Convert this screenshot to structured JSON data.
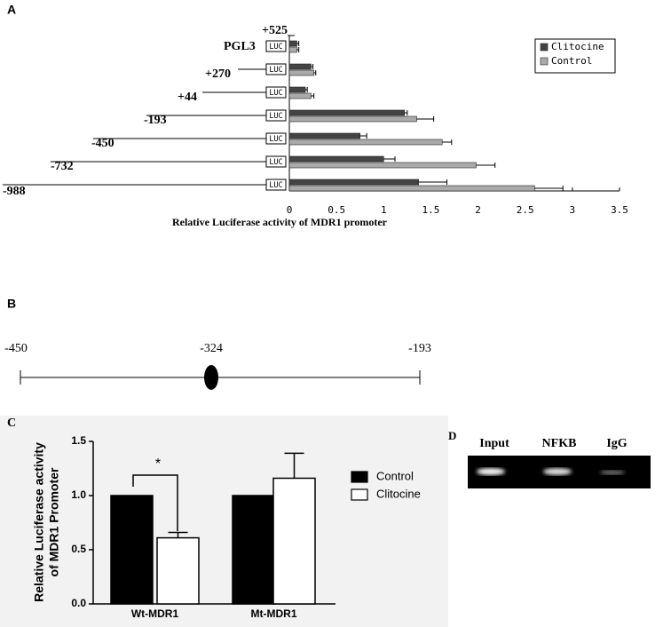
{
  "panel_labels": [
    "A",
    "B",
    "C",
    "D"
  ],
  "chart_data": [
    {
      "type": "hbar",
      "x_label": "Relative Luciferase  activity of MDR1 promoter",
      "end_label": "+525",
      "box_label": "LUC",
      "categories": [
        "PGL3",
        "+270",
        "+44",
        "-193",
        "-450",
        "-732",
        "-988"
      ],
      "series": [
        {
          "name": "Clitocine",
          "color": "#444444",
          "values": [
            0.08,
            0.23,
            0.17,
            1.22,
            0.75,
            1.0,
            1.37
          ],
          "errors": [
            0.02,
            0.02,
            0.02,
            0.03,
            0.07,
            0.12,
            0.3
          ]
        },
        {
          "name": "Control",
          "color": "#aaaaaa",
          "values": [
            0.08,
            0.26,
            0.23,
            1.35,
            1.62,
            1.98,
            2.6
          ],
          "errors": [
            0.02,
            0.02,
            0.03,
            0.18,
            0.1,
            0.2,
            0.3
          ]
        }
      ],
      "xlim": [
        0,
        3.5
      ],
      "xticks": [
        0,
        0.5,
        1,
        1.5,
        2,
        2.5,
        3,
        3.5
      ],
      "legend": "upper right"
    },
    {
      "type": "bar",
      "y_label": [
        "Relative Luciferase activity",
        "of MDR1 Promoter"
      ],
      "categories": [
        "Wt-MDR1",
        "Mt-MDR1"
      ],
      "series": [
        {
          "name": "Control",
          "color": "#000000",
          "values": [
            1,
            1
          ],
          "errors": [
            0,
            0
          ]
        },
        {
          "name": "Clitocine",
          "color": "#ffffff",
          "values": [
            0.61,
            1.16
          ],
          "errors": [
            0.05,
            0.23
          ]
        }
      ],
      "ylim": [
        0,
        1.5
      ],
      "yticks": [
        {
          "value": 0,
          "label": "0.0"
        },
        0.5,
        {
          "value": 1,
          "label": "1.0"
        },
        1.5
      ],
      "annotation": "*",
      "legend": "right"
    }
  ],
  "diagram": {
    "labels": [
      "-450",
      "-324",
      "-193"
    ]
  },
  "gel": {
    "lanes": [
      "Input",
      "NFKB",
      "IgG"
    ]
  }
}
